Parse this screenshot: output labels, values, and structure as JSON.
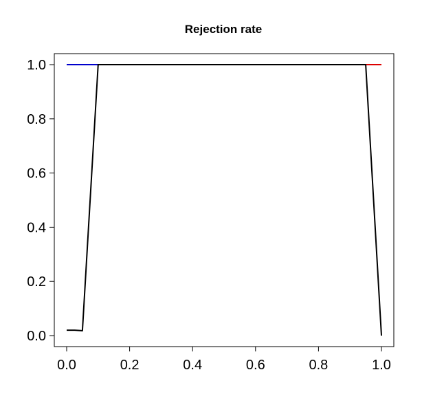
{
  "chart_data": {
    "type": "line",
    "title": "Rejection rate",
    "xlabel": "",
    "ylabel": "",
    "xlim": [
      0.0,
      1.0
    ],
    "ylim": [
      0.0,
      1.0
    ],
    "x_ticks": [
      "0.0",
      "0.2",
      "0.4",
      "0.6",
      "0.8",
      "1.0"
    ],
    "y_ticks": [
      "0.0",
      "0.2",
      "0.4",
      "0.6",
      "0.8",
      "1.0"
    ],
    "grid": false,
    "legend": "none",
    "series": [
      {
        "color": "#0000cc",
        "x": [
          0.0,
          0.1
        ],
        "y": [
          1.0,
          1.0
        ]
      },
      {
        "color": "#dd0000",
        "x": [
          0.95,
          1.0
        ],
        "y": [
          1.0,
          1.0
        ]
      },
      {
        "color": "#000000",
        "x": [
          0.0,
          0.025,
          0.05,
          0.1,
          0.15,
          0.2,
          0.25,
          0.3,
          0.35,
          0.4,
          0.45,
          0.5,
          0.55,
          0.6,
          0.65,
          0.7,
          0.75,
          0.8,
          0.85,
          0.9,
          0.95,
          1.0
        ],
        "y": [
          0.02,
          0.02,
          0.018,
          1.0,
          1.0,
          1.0,
          1.0,
          1.0,
          1.0,
          1.0,
          1.0,
          1.0,
          1.0,
          1.0,
          1.0,
          1.0,
          1.0,
          1.0,
          1.0,
          1.0,
          1.0,
          0.0
        ]
      }
    ]
  }
}
